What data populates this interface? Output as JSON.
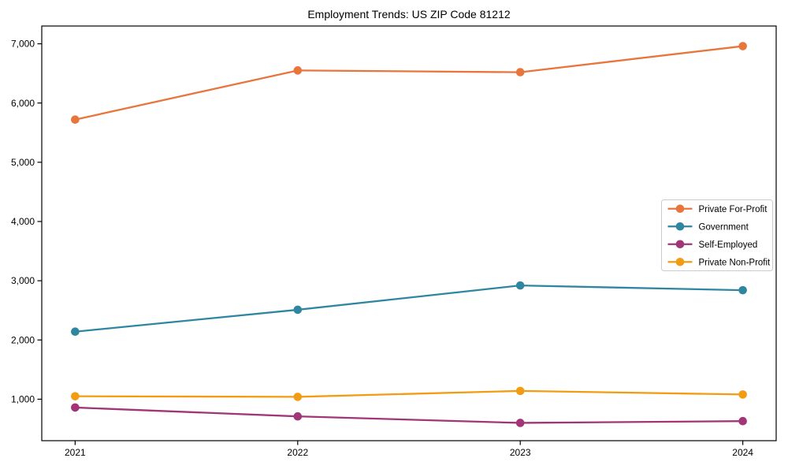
{
  "chart_data": {
    "type": "line",
    "title": "Employment Trends: US ZIP Code 81212",
    "xlabel": "",
    "ylabel": "",
    "categories": [
      "2021",
      "2022",
      "2023",
      "2024"
    ],
    "series": [
      {
        "name": "Private For-Profit",
        "color": "#E8753C",
        "values": [
          5720,
          6550,
          6520,
          6960
        ]
      },
      {
        "name": "Government",
        "color": "#2E86A1",
        "values": [
          2140,
          2510,
          2920,
          2840
        ]
      },
      {
        "name": "Self-Employed",
        "color": "#A23478",
        "values": [
          860,
          710,
          600,
          630
        ]
      },
      {
        "name": "Private Non-Profit",
        "color": "#F29C13",
        "values": [
          1050,
          1040,
          1140,
          1080
        ]
      }
    ],
    "y_axis": {
      "ticks": [
        {
          "value": 1000,
          "label": "1,000"
        },
        {
          "value": 2000,
          "label": "2,000"
        },
        {
          "value": 3000,
          "label": "3,000"
        },
        {
          "value": 4000,
          "label": "4,000"
        },
        {
          "value": 5000,
          "label": "5,000"
        },
        {
          "value": 6000,
          "label": "6,000"
        },
        {
          "value": 7000,
          "label": "7,000"
        }
      ],
      "ylim": [
        300,
        7300
      ]
    },
    "grid": false,
    "legend": {
      "position": "right-middle",
      "border_color": "#cccccc",
      "background": "#ffffff"
    },
    "axis_color": "#000000",
    "background_color": "#ffffff"
  }
}
